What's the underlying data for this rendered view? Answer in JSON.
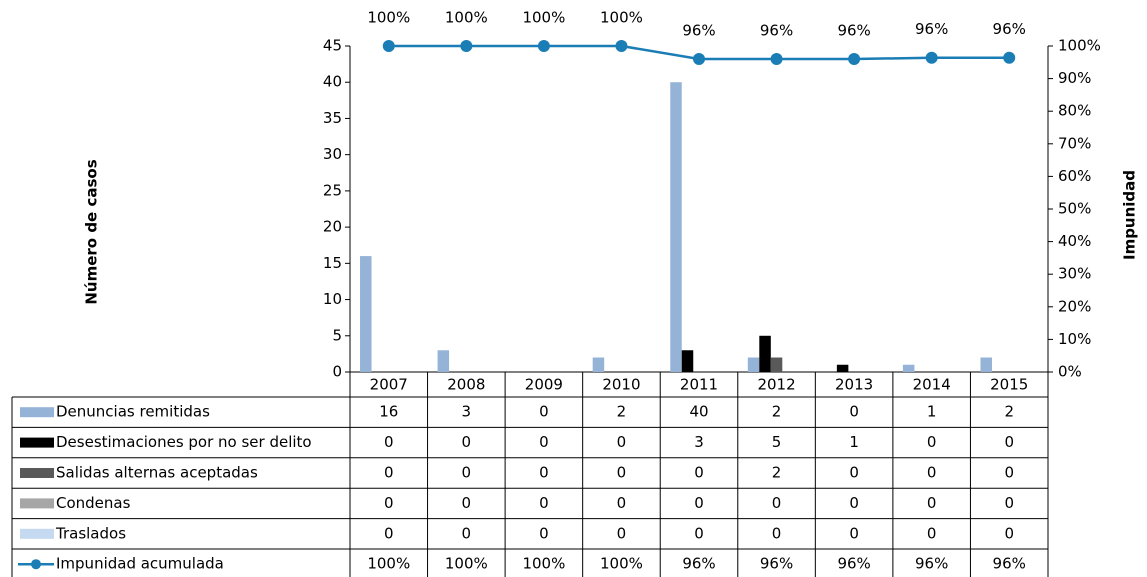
{
  "chart_data": {
    "type": "bar",
    "categories": [
      "2007",
      "2008",
      "2009",
      "2010",
      "2011",
      "2012",
      "2013",
      "2014",
      "2015"
    ],
    "ylabel": "Número de casos",
    "y2label": "Impunidad",
    "ylim": [
      0,
      45
    ],
    "yticks": [
      0,
      5,
      10,
      15,
      20,
      25,
      30,
      35,
      40,
      45
    ],
    "y2lim": [
      0,
      100
    ],
    "y2ticks": [
      {
        "value": 0,
        "label": "0%"
      },
      {
        "value": 10,
        "label": "10%"
      },
      {
        "value": 20,
        "label": "20%"
      },
      {
        "value": 30,
        "label": "30%"
      },
      {
        "value": 40,
        "label": "40%"
      },
      {
        "value": 50,
        "label": "50%"
      },
      {
        "value": 60,
        "label": "60%"
      },
      {
        "value": 70,
        "label": "70%"
      },
      {
        "value": 80,
        "label": "80%"
      },
      {
        "value": 90,
        "label": "90%"
      },
      {
        "value": 100,
        "label": "100%"
      }
    ],
    "series": [
      {
        "name": "Denuncias remitidas",
        "color": "#95b3d7",
        "values": [
          16,
          3,
          0,
          2,
          40,
          2,
          0,
          1,
          2
        ]
      },
      {
        "name": "Desestimaciones por no ser delito",
        "color": "#000000",
        "values": [
          0,
          0,
          0,
          0,
          3,
          5,
          1,
          0,
          0
        ]
      },
      {
        "name": "Salidas alternas aceptadas",
        "color": "#595959",
        "values": [
          0,
          0,
          0,
          0,
          0,
          2,
          0,
          0,
          0
        ]
      },
      {
        "name": "Condenas",
        "color": "#a6a6a6",
        "values": [
          0,
          0,
          0,
          0,
          0,
          0,
          0,
          0,
          0
        ]
      },
      {
        "name": "Traslados",
        "color": "#c5d9f1",
        "values": [
          0,
          0,
          0,
          0,
          0,
          0,
          0,
          0,
          0
        ]
      },
      {
        "name": "Impunidad acumulada",
        "color": "#1a7db5",
        "type": "line",
        "axis": "y2",
        "values": [
          100,
          100,
          100,
          100,
          96,
          96,
          96,
          96.4,
          96.4
        ],
        "value_labels": [
          "100%",
          "100%",
          "100%",
          "100%",
          "96%",
          "96%",
          "96%",
          "96%",
          "96%"
        ]
      }
    ]
  }
}
